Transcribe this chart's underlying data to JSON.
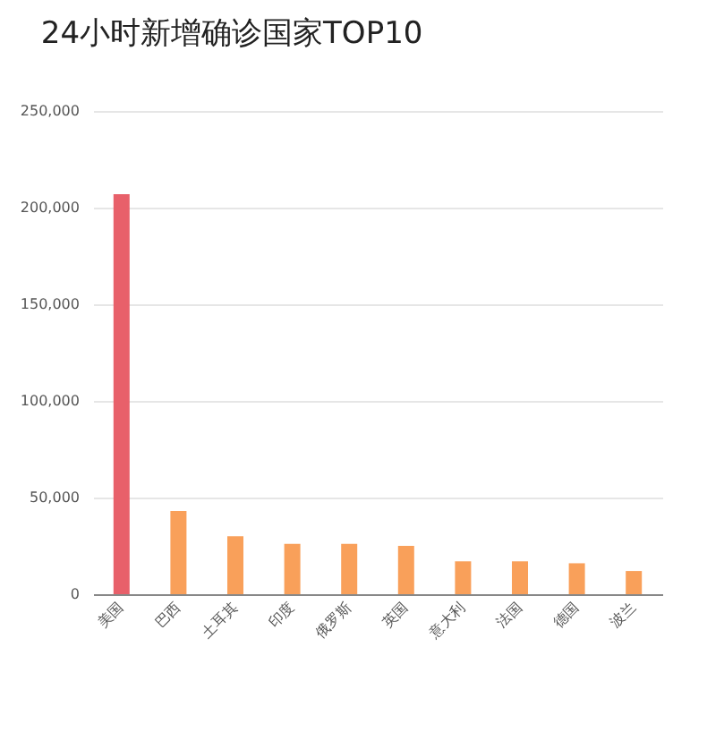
{
  "chart_data": {
    "type": "bar",
    "title": "24小时新增确诊国家TOP10",
    "categories": [
      "美国",
      "巴西",
      "土耳其",
      "印度",
      "俄罗斯",
      "英国",
      "意大利",
      "法国",
      "德国",
      "波兰"
    ],
    "values": [
      207000,
      43000,
      30000,
      26000,
      26000,
      25000,
      17000,
      17000,
      16000,
      12000
    ],
    "colors": [
      "#e8606a",
      "#f9a05a",
      "#f9a05a",
      "#f9a05a",
      "#f9a05a",
      "#f9a05a",
      "#f9a05a",
      "#f9a05a",
      "#f9a05a",
      "#f9a05a"
    ],
    "ylim": [
      0,
      250000
    ],
    "yticks": [
      0,
      {
        "value": 50000,
        "label": "50,000"
      },
      {
        "value": 100000,
        "label": "100,000"
      },
      {
        "value": 150000,
        "label": "150,000"
      },
      {
        "value": 200000,
        "label": "200,000"
      },
      {
        "value": 250000,
        "label": "250,000"
      }
    ],
    "grid": "y"
  }
}
